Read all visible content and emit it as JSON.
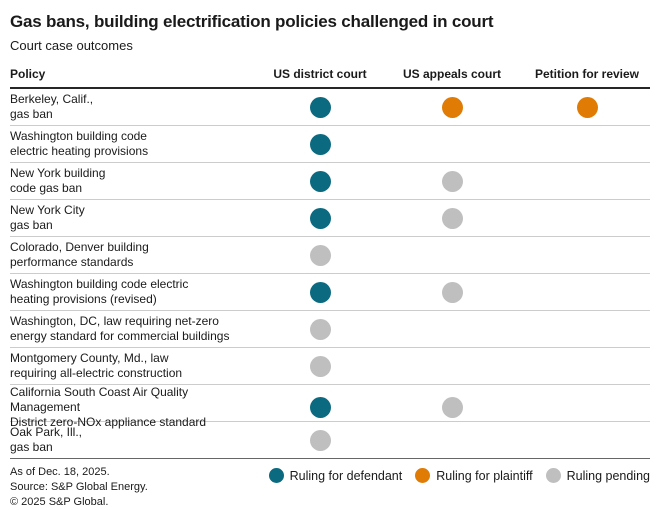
{
  "title": "Gas bans, building electrification policies challenged in court",
  "subtitle": "Court case outcomes",
  "colors": {
    "defendant": "#0b6a80",
    "plaintiff": "#e07c05",
    "pending": "#bfbfbf"
  },
  "chart_data": {
    "type": "table",
    "title": "Gas bans, building electrification policies challenged in court",
    "subtitle": "Court case outcomes",
    "columns": [
      "Policy",
      "US district court",
      "US appeals court",
      "Petition for review"
    ],
    "status_legend": {
      "defendant": "Ruling for defendant",
      "plaintiff": "Ruling for plaintiff",
      "pending": "Ruling pending"
    },
    "rows": [
      {
        "policy_lines": [
          "Berkeley, Calif.,",
          "gas ban"
        ],
        "district": "defendant",
        "appeals": "plaintiff",
        "petition": "plaintiff"
      },
      {
        "policy_lines": [
          "Washington building code",
          "electric heating provisions"
        ],
        "district": "defendant",
        "appeals": null,
        "petition": null
      },
      {
        "policy_lines": [
          "New York building",
          "code gas ban"
        ],
        "district": "defendant",
        "appeals": "pending",
        "petition": null
      },
      {
        "policy_lines": [
          "New York City",
          "gas ban"
        ],
        "district": "defendant",
        "appeals": "pending",
        "petition": null
      },
      {
        "policy_lines": [
          "Colorado, Denver building",
          "performance standards"
        ],
        "district": "pending",
        "appeals": null,
        "petition": null
      },
      {
        "policy_lines": [
          "Washington building code electric",
          "heating provisions (revised)"
        ],
        "district": "defendant",
        "appeals": "pending",
        "petition": null
      },
      {
        "policy_lines": [
          "Washington, DC, law requiring net-zero",
          "energy standard for commercial buildings"
        ],
        "district": "pending",
        "appeals": null,
        "petition": null
      },
      {
        "policy_lines": [
          "Montgomery County, Md., law",
          "requiring all-electric construction"
        ],
        "district": "pending",
        "appeals": null,
        "petition": null
      },
      {
        "policy_lines": [
          "California South Coast Air Quality Management",
          "District zero-NOx appliance standard"
        ],
        "district": "defendant",
        "appeals": "pending",
        "petition": null
      },
      {
        "policy_lines": [
          "Oak Park, Ill.,",
          "gas ban"
        ],
        "district": "pending",
        "appeals": null,
        "petition": null
      }
    ]
  },
  "header": {
    "col_policy": "Policy",
    "col_district": "US district court",
    "col_appeals": "US appeals court",
    "col_petition": "Petition for review"
  },
  "legend": [
    {
      "status": "defendant",
      "label": "Ruling for defendant"
    },
    {
      "status": "plaintiff",
      "label": "Ruling for plaintiff"
    },
    {
      "status": "pending",
      "label": "Ruling pending"
    }
  ],
  "footer": {
    "as_of": "As of Dec. 18, 2025.",
    "source": "Source: S&P Global Energy.",
    "copyright": "© 2025 S&P Global."
  }
}
